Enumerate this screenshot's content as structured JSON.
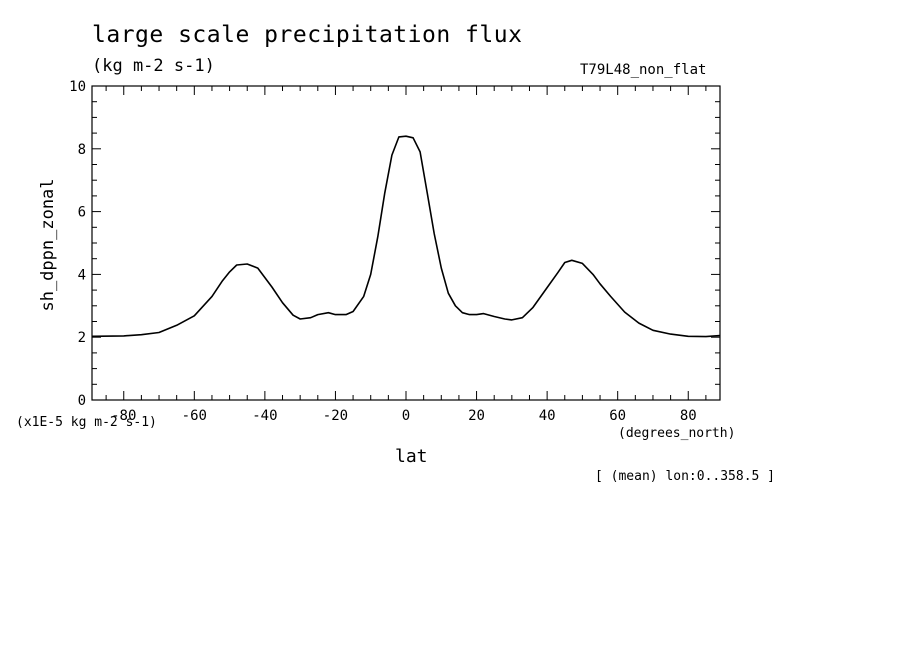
{
  "chart_data": {
    "type": "line",
    "title": "large scale precipitation flux",
    "units": "(kg m-2 s-1)",
    "dataset_label": "T79L48_non_flat",
    "scale_note": "(x1E-5 kg m-2 s-1)",
    "xlabel": "lat",
    "x_units": "(degrees_north)",
    "ylabel": "sh_dppn_zonal",
    "mean_note": "[ (mean) lon:0..358.5 ]",
    "xlim": [
      -89,
      89
    ],
    "ylim": [
      0,
      10
    ],
    "x_ticks": [
      -80,
      -60,
      -40,
      -20,
      0,
      20,
      40,
      60,
      80
    ],
    "x_tick_labels": [
      "-80",
      "-60",
      "-40",
      "-20",
      "0",
      "20",
      "40",
      "60",
      "80"
    ],
    "y_ticks": [
      0,
      2,
      4,
      6,
      8,
      10
    ],
    "y_tick_labels": [
      "0",
      "2",
      "4",
      "6",
      "8",
      "10"
    ],
    "grid": false,
    "series": [
      {
        "x": [
          -89,
          -80,
          -75,
          -70,
          -65,
          -60,
          -55,
          -52,
          -50,
          -48,
          -45,
          -42,
          -38,
          -35,
          -32,
          -30,
          -27,
          -25,
          -22,
          -20,
          -17,
          -15,
          -12,
          -10,
          -8,
          -6,
          -4,
          -2,
          0,
          2,
          4,
          6,
          8,
          10,
          12,
          14,
          16,
          18,
          20,
          22,
          25,
          28,
          30,
          33,
          36,
          40,
          43,
          45,
          47,
          50,
          53,
          55,
          58,
          62,
          66,
          70,
          75,
          80,
          85,
          89
        ],
        "y": [
          2.03,
          2.04,
          2.08,
          2.15,
          2.38,
          2.68,
          3.3,
          3.8,
          4.08,
          4.3,
          4.33,
          4.2,
          3.6,
          3.1,
          2.7,
          2.58,
          2.62,
          2.72,
          2.78,
          2.72,
          2.72,
          2.82,
          3.3,
          4.0,
          5.2,
          6.6,
          7.8,
          8.38,
          8.4,
          8.35,
          7.9,
          6.6,
          5.3,
          4.2,
          3.4,
          3.0,
          2.78,
          2.72,
          2.72,
          2.75,
          2.66,
          2.58,
          2.55,
          2.62,
          2.95,
          3.58,
          4.05,
          4.38,
          4.45,
          4.35,
          4.0,
          3.7,
          3.3,
          2.8,
          2.45,
          2.22,
          2.1,
          2.03,
          2.02,
          2.05
        ]
      }
    ]
  }
}
